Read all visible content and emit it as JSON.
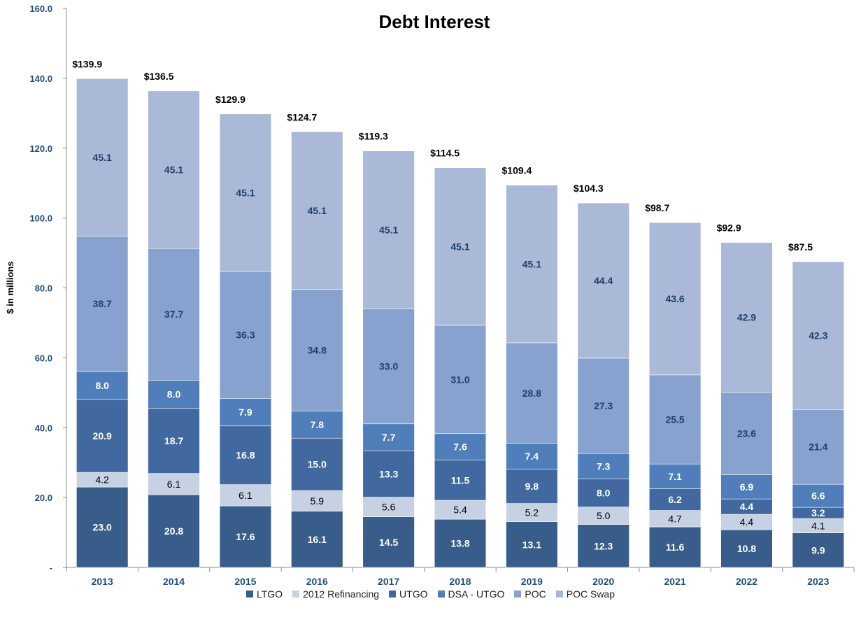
{
  "chart_data": {
    "type": "bar",
    "stacked": true,
    "title": "Debt Interest",
    "ylabel": "$ in millions",
    "xlabel": "",
    "ylim": [
      0,
      160
    ],
    "yticks": [
      {
        "value": 0,
        "label": "-"
      },
      {
        "value": 20,
        "label": "20.0"
      },
      {
        "value": 40,
        "label": "40.0"
      },
      {
        "value": 60,
        "label": "60.0"
      },
      {
        "value": 80,
        "label": "80.0"
      },
      {
        "value": 100,
        "label": "100.0"
      },
      {
        "value": 120,
        "label": "120.0"
      },
      {
        "value": 140,
        "label": "140.0"
      },
      {
        "value": 160,
        "label": "160.0"
      }
    ],
    "grid": false,
    "legend_position": "bottom",
    "categories": [
      "2013",
      "2014",
      "2015",
      "2016",
      "2017",
      "2018",
      "2019",
      "2020",
      "2021",
      "2022",
      "2023"
    ],
    "totals": [
      "$139.9",
      "$136.5",
      "$129.9",
      "$124.7",
      "$119.3",
      "$114.5",
      "$109.4",
      "$104.3",
      "$98.7",
      "$92.9",
      "$87.5"
    ],
    "series": [
      {
        "name": "LTGO",
        "color": "#385D8A",
        "label_color": "#ffffff",
        "values": [
          23.0,
          20.8,
          17.6,
          16.1,
          14.5,
          13.8,
          13.1,
          12.3,
          11.6,
          10.8,
          9.9
        ]
      },
      {
        "name": "2012 Refinancing",
        "color": "#C6D1E4",
        "label_color": "#000000",
        "values": [
          4.2,
          6.1,
          6.1,
          5.9,
          5.6,
          5.4,
          5.2,
          5.0,
          4.7,
          4.4,
          4.1
        ]
      },
      {
        "name": "UTGO",
        "color": "#4169A0",
        "label_color": "#ffffff",
        "values": [
          20.9,
          18.7,
          16.8,
          15.0,
          13.3,
          11.5,
          9.8,
          8.0,
          6.2,
          4.4,
          3.2
        ]
      },
      {
        "name": "DSA - UTGO",
        "color": "#4F7EBB",
        "label_color": "#ffffff",
        "values": [
          8.0,
          8.0,
          7.9,
          7.8,
          7.7,
          7.6,
          7.4,
          7.3,
          7.1,
          6.9,
          6.6
        ]
      },
      {
        "name": "POC",
        "color": "#87A2CE",
        "label_color": "#1F3F6E",
        "values": [
          38.7,
          37.7,
          36.3,
          34.8,
          33.0,
          31.0,
          28.8,
          27.3,
          25.5,
          23.6,
          21.4
        ]
      },
      {
        "name": "POC Swap",
        "color": "#AAB9D8",
        "label_color": "#1F3F6E",
        "values": [
          45.1,
          45.1,
          45.1,
          45.1,
          45.1,
          45.1,
          45.1,
          44.4,
          43.6,
          42.9,
          42.3
        ]
      }
    ]
  }
}
